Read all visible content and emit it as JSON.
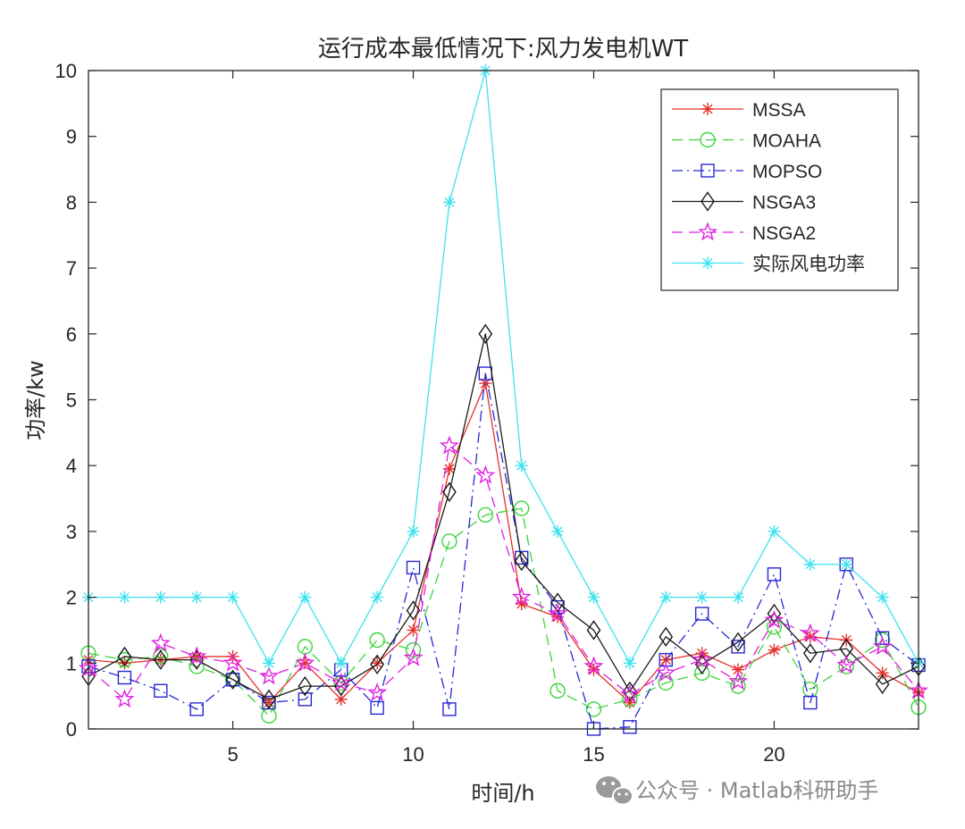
{
  "chart_data": {
    "type": "line",
    "title": "运行成本最低情况下:风力发电机WT",
    "xlabel": "时间/h",
    "ylabel": "功率/kw",
    "xlim": [
      1,
      24
    ],
    "ylim": [
      0,
      10
    ],
    "xticks": [
      5,
      10,
      15,
      20
    ],
    "yticks": [
      0,
      1,
      2,
      3,
      4,
      5,
      6,
      7,
      8,
      9,
      10
    ],
    "grid": false,
    "legend_position": "top-right",
    "x": [
      1,
      2,
      3,
      4,
      5,
      6,
      7,
      8,
      9,
      10,
      11,
      12,
      13,
      14,
      15,
      16,
      17,
      18,
      19,
      20,
      21,
      22,
      23,
      24
    ],
    "series": [
      {
        "name": "MSSA",
        "color": "#e6302b",
        "dash": "solid",
        "marker": "asterisk",
        "values": [
          1.05,
          1.0,
          1.05,
          1.1,
          1.1,
          0.4,
          1.0,
          0.45,
          1.0,
          1.5,
          3.95,
          5.25,
          1.9,
          1.7,
          0.9,
          0.4,
          1.05,
          1.15,
          0.9,
          1.2,
          1.4,
          1.35,
          0.85,
          0.55
        ]
      },
      {
        "name": "MOAHA",
        "color": "#3cd43c",
        "dash": "dashed",
        "marker": "circle",
        "values": [
          1.15,
          1.05,
          1.1,
          0.95,
          0.75,
          0.2,
          1.25,
          0.7,
          1.35,
          1.2,
          2.85,
          3.25,
          3.35,
          0.58,
          0.3,
          0.45,
          0.7,
          0.85,
          0.65,
          1.55,
          0.6,
          0.95,
          1.35,
          0.33
        ]
      },
      {
        "name": "MOPSO",
        "color": "#2727d6",
        "dash": "dashdot",
        "marker": "square",
        "values": [
          0.95,
          0.78,
          0.58,
          0.3,
          0.75,
          0.4,
          0.45,
          0.9,
          0.32,
          2.45,
          0.3,
          5.4,
          2.6,
          1.85,
          0.0,
          0.03,
          1.05,
          1.75,
          1.25,
          2.35,
          0.4,
          2.5,
          1.38,
          0.97
        ]
      },
      {
        "name": "NSGA3",
        "color": "#1a1a1a",
        "dash": "solid",
        "marker": "diamond",
        "values": [
          0.8,
          1.1,
          1.05,
          1.05,
          0.75,
          0.45,
          0.65,
          0.65,
          0.98,
          1.8,
          3.6,
          6.0,
          2.55,
          1.92,
          1.5,
          0.57,
          1.4,
          0.98,
          1.32,
          1.75,
          1.15,
          1.22,
          0.68,
          0.95
        ]
      },
      {
        "name": "NSGA2",
        "color": "#e01ee0",
        "dash": "dashed",
        "marker": "star",
        "values": [
          0.92,
          0.45,
          1.3,
          1.1,
          1.0,
          0.8,
          1.0,
          0.7,
          0.55,
          1.08,
          4.3,
          3.85,
          2.0,
          1.75,
          0.95,
          0.52,
          0.85,
          1.05,
          0.72,
          1.65,
          1.45,
          0.97,
          1.25,
          0.58
        ]
      },
      {
        "name": "实际风电功率",
        "color": "#3fe1ee",
        "dash": "solid",
        "marker": "asterisk",
        "values": [
          2,
          2,
          2,
          2,
          2,
          1,
          2,
          1,
          2,
          3,
          8,
          10,
          4,
          3,
          2,
          1,
          2,
          2,
          2,
          3,
          2.5,
          2.5,
          2,
          1
        ]
      }
    ]
  },
  "watermark": {
    "icon": "wechat-icon",
    "text": "公众号 · Matlab科研助手"
  }
}
